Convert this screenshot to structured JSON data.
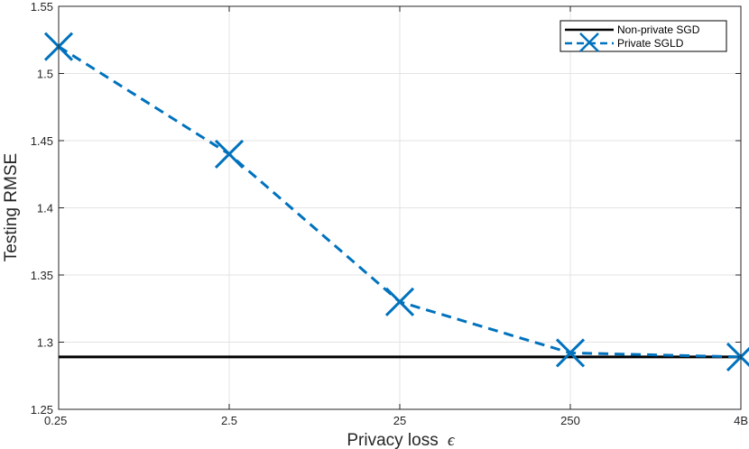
{
  "chart_data": {
    "type": "line",
    "xlabel": "Privacy loss",
    "xlabel_symbol": "ϵ",
    "ylabel": "Testing RMSE",
    "categories": [
      "0.25",
      "2.5",
      "25",
      "250",
      "4B"
    ],
    "ylim": [
      1.25,
      1.55
    ],
    "yticks": [
      "1.25",
      "1.3",
      "1.35",
      "1.4",
      "1.45",
      "1.5",
      "1.55"
    ],
    "grid": true,
    "legend_position": "top-right",
    "series": [
      {
        "name": "Non-private SGD",
        "style": "solid",
        "color": "#000000",
        "constant": 1.289
      },
      {
        "name": "Private SGLD",
        "style": "dashed",
        "marker": "x",
        "color": "#0072BD",
        "values": [
          1.52,
          1.44,
          1.33,
          1.292,
          1.289
        ]
      }
    ]
  }
}
